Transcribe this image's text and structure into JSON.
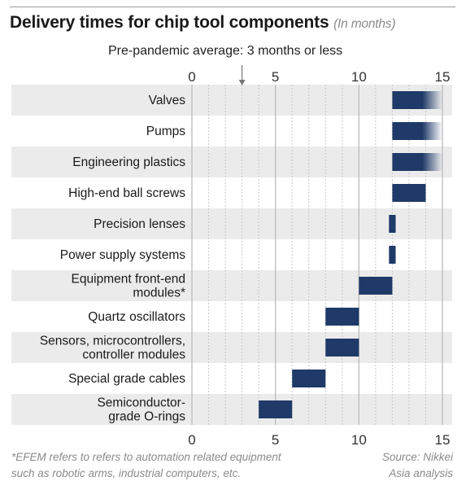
{
  "chart_data": {
    "type": "bar",
    "title": "Delivery times for chip tool components",
    "subtitle": "(In months)",
    "annotation": "Pre-pandemic average: 3 months or less",
    "annotation_marker": 3,
    "xlim": [
      0,
      15
    ],
    "x_ticks": [
      0,
      5,
      10,
      15
    ],
    "grid": "vertical, every 1 month",
    "categories": [
      [
        "Valves"
      ],
      [
        "Pumps"
      ],
      [
        "Engineering plastics"
      ],
      [
        "High-end ball screws"
      ],
      [
        "Precision lenses"
      ],
      [
        "Power supply systems"
      ],
      [
        "Equipment front-end",
        "modules*"
      ],
      [
        "Quartz oscillators"
      ],
      [
        "Sensors, microcontrollers,",
        "controller modules"
      ],
      [
        "Special grade cables"
      ],
      [
        "Semiconductor-",
        "grade O-rings"
      ]
    ],
    "ranges": [
      {
        "start": 12,
        "end": 15,
        "open_ended": true
      },
      {
        "start": 12,
        "end": 15,
        "open_ended": true
      },
      {
        "start": 12,
        "end": 15,
        "open_ended": true
      },
      {
        "start": 12,
        "end": 14,
        "open_ended": false
      },
      {
        "start": 11.8,
        "end": 12.2,
        "open_ended": false
      },
      {
        "start": 11.8,
        "end": 12.2,
        "open_ended": false
      },
      {
        "start": 10,
        "end": 12,
        "open_ended": false
      },
      {
        "start": 8,
        "end": 10,
        "open_ended": false
      },
      {
        "start": 8,
        "end": 10,
        "open_ended": false
      },
      {
        "start": 6,
        "end": 8,
        "open_ended": false
      },
      {
        "start": 4,
        "end": 6,
        "open_ended": false
      }
    ]
  },
  "footnote": {
    "line1": "*EFEM refers to refers to automation related equipment",
    "line2": "such as robotic arms, industrial computers, etc."
  },
  "source": {
    "line1": "Source: Nikkei",
    "line2": "Asia analysis"
  },
  "colors": {
    "bar": "#1f3a68",
    "band": "#ebebeb",
    "grid_major": "#bbbbbb",
    "grid_minor": "#c8c8c8"
  }
}
